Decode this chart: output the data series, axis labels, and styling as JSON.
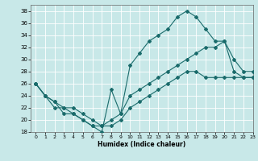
{
  "xlabel": "Humidex (Indice chaleur)",
  "bg_color": "#c8e8e8",
  "grid_color": "#ffffff",
  "line_color": "#1a6b6b",
  "xlim": [
    -0.5,
    23
  ],
  "ylim": [
    18,
    39
  ],
  "xticks": [
    0,
    1,
    2,
    3,
    4,
    5,
    6,
    7,
    8,
    9,
    10,
    11,
    12,
    13,
    14,
    15,
    16,
    17,
    18,
    19,
    20,
    21,
    22,
    23
  ],
  "yticks": [
    18,
    20,
    22,
    24,
    26,
    28,
    30,
    32,
    34,
    36,
    38
  ],
  "line_max_x": [
    0,
    1,
    2,
    3,
    4,
    5,
    6,
    7,
    8,
    9,
    10,
    11,
    12,
    13,
    14,
    15,
    16,
    17,
    18,
    19,
    20,
    21,
    22,
    23
  ],
  "line_max_y": [
    26,
    24,
    23,
    21,
    21,
    20,
    19,
    18,
    25,
    21,
    29,
    31,
    33,
    34,
    35,
    37,
    38,
    37,
    35,
    33,
    33,
    30,
    28,
    28
  ],
  "line_mid_x": [
    0,
    1,
    2,
    3,
    4,
    5,
    6,
    7,
    8,
    9,
    10,
    11,
    12,
    13,
    14,
    15,
    16,
    17,
    18,
    19,
    20,
    21,
    22,
    23
  ],
  "line_mid_y": [
    26,
    24,
    23,
    22,
    22,
    21,
    20,
    19,
    20,
    21,
    24,
    25,
    26,
    27,
    28,
    29,
    30,
    31,
    32,
    32,
    33,
    28,
    27,
    27
  ],
  "line_min_x": [
    0,
    1,
    2,
    3,
    4,
    5,
    6,
    7,
    8,
    9,
    10,
    11,
    12,
    13,
    14,
    15,
    16,
    17,
    18,
    19,
    20,
    21,
    22,
    23
  ],
  "line_min_y": [
    26,
    24,
    22,
    22,
    21,
    20,
    19,
    19,
    19,
    20,
    22,
    23,
    24,
    25,
    26,
    27,
    28,
    28,
    27,
    27,
    27,
    27,
    27,
    27
  ]
}
